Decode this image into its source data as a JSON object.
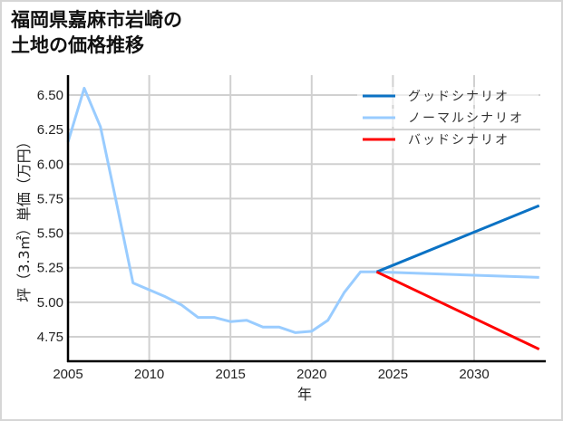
{
  "title": {
    "line1": "福岡県嘉麻市岩崎の",
    "line2": "土地の価格推移"
  },
  "colors": {
    "good": "#0b72c4",
    "normal": "#99ccff",
    "bad": "#ff0000",
    "grid": "#d0d0d0",
    "axis": "#000000"
  },
  "chart_data": {
    "type": "line",
    "title": "福岡県嘉麻市岩崎の土地の価格推移",
    "xlabel": "年",
    "ylabel": "坪（3.3㎡）単価（万円）",
    "xlim": [
      2005,
      2034
    ],
    "ylim": [
      4.58,
      6.65
    ],
    "xticks": [
      2005,
      2010,
      2015,
      2020,
      2025,
      2030
    ],
    "yticks": [
      4.75,
      5.0,
      5.25,
      5.5,
      5.75,
      6.0,
      6.25,
      6.5
    ],
    "ytick_labels": [
      "4.75",
      "5.00",
      "5.25",
      "5.50",
      "5.75",
      "6.00",
      "6.25",
      "6.50"
    ],
    "grid": true,
    "legend_position": "upper right",
    "series": [
      {
        "name": "グッドシナリオ",
        "color": "#0b72c4",
        "x": [
          2024,
          2034
        ],
        "values": [
          5.22,
          5.7
        ]
      },
      {
        "name": "ノーマルシナリオ",
        "color": "#99ccff",
        "x": [
          2005,
          2006,
          2007,
          2008,
          2009,
          2010,
          2011,
          2012,
          2013,
          2014,
          2015,
          2016,
          2017,
          2018,
          2019,
          2020,
          2021,
          2022,
          2023,
          2024,
          2034
        ],
        "values": [
          6.16,
          6.55,
          6.27,
          5.71,
          5.14,
          5.09,
          5.04,
          4.98,
          4.89,
          4.89,
          4.86,
          4.87,
          4.82,
          4.82,
          4.78,
          4.79,
          4.87,
          5.07,
          5.22,
          5.22,
          5.18
        ]
      },
      {
        "name": "バッドシナリオ",
        "color": "#ff0000",
        "x": [
          2024,
          2034
        ],
        "values": [
          5.22,
          4.66
        ]
      }
    ]
  }
}
